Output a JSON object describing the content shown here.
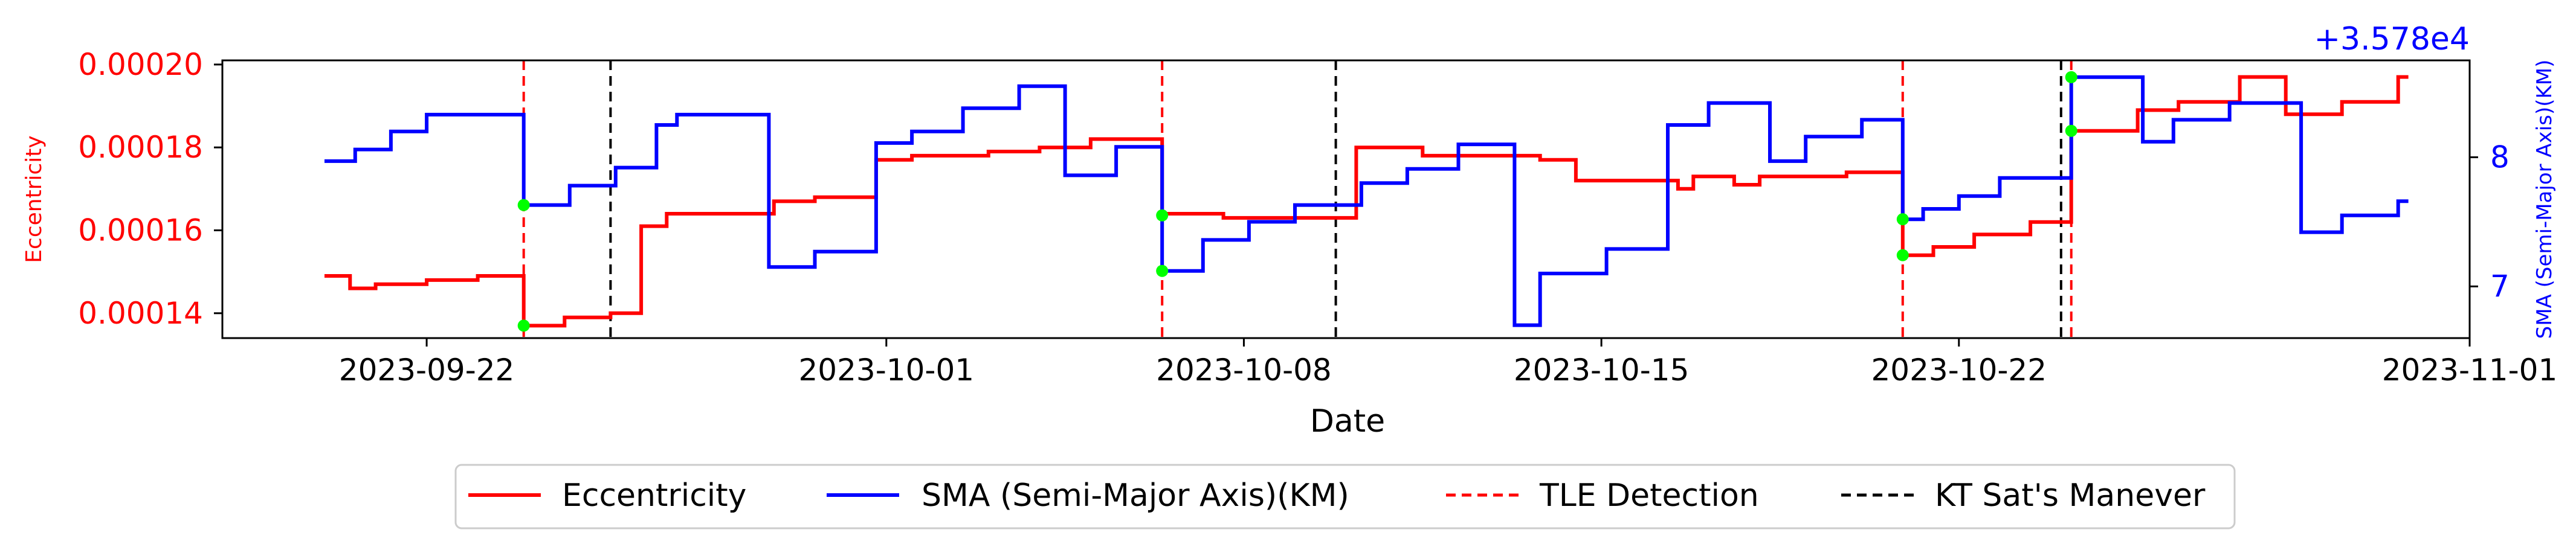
{
  "chart_data": {
    "type": "line",
    "xlabel": "Date",
    "ylabel_left": "Eccentricity",
    "ylabel_right": "SMA (Semi-Major Axis)(KM)",
    "right_offset_text": "+3.578e4",
    "x_ticks": [
      "2023-09-22",
      "2023-10-01",
      "2023-10-08",
      "2023-10-15",
      "2023-10-22",
      "2023-11-01"
    ],
    "y_left_ticks": [
      "0.00014",
      "0.00016",
      "0.00018",
      "0.00020"
    ],
    "y_right_ticks": [
      "7",
      "8"
    ],
    "xlim": [
      "2023-09-18",
      "2023-11-01"
    ],
    "ylim_left": [
      0.000134,
      0.000201
    ],
    "ylim_right": [
      6.6,
      8.75
    ],
    "colors": {
      "eccentricity": "#ff0000",
      "sma": "#0000ff",
      "tle": "#ff0000",
      "kt": "#000000",
      "marker": "#00ff00"
    },
    "series": [
      {
        "name": "Eccentricity",
        "axis": "left",
        "points": [
          [
            "2023-09-20",
            0.000149
          ],
          [
            "2023-09-20.5",
            0.000149
          ],
          [
            "2023-09-20.5",
            0.000146
          ],
          [
            "2023-09-21",
            0.000146
          ],
          [
            "2023-09-21",
            0.000147
          ],
          [
            "2023-09-22",
            0.000147
          ],
          [
            "2023-09-22",
            0.000148
          ],
          [
            "2023-09-23",
            0.000148
          ],
          [
            "2023-09-23",
            0.000149
          ],
          [
            "2023-09-23.9",
            0.000149
          ],
          [
            "2023-09-23.9",
            0.000137
          ],
          [
            "2023-09-24.7",
            0.000137
          ],
          [
            "2023-09-24.7",
            0.000139
          ],
          [
            "2023-09-25.6",
            0.000139
          ],
          [
            "2023-09-25.6",
            0.00014
          ],
          [
            "2023-09-26.2",
            0.00014
          ],
          [
            "2023-09-26.2",
            0.000161
          ],
          [
            "2023-09-26.7",
            0.000161
          ],
          [
            "2023-09-26.7",
            0.000164
          ],
          [
            "2023-09-28.8",
            0.000164
          ],
          [
            "2023-09-28.8",
            0.000167
          ],
          [
            "2023-09-29.6",
            0.000167
          ],
          [
            "2023-09-29.6",
            0.000168
          ],
          [
            "2023-09-30.8",
            0.000168
          ],
          [
            "2023-09-30.8",
            0.000177
          ],
          [
            "2023-10-01.5",
            0.000177
          ],
          [
            "2023-10-01.5",
            0.000178
          ],
          [
            "2023-10-03",
            0.000178
          ],
          [
            "2023-10-03",
            0.000179
          ],
          [
            "2023-10-04",
            0.000179
          ],
          [
            "2023-10-04",
            0.00018
          ],
          [
            "2023-10-05",
            0.00018
          ],
          [
            "2023-10-05",
            0.000182
          ],
          [
            "2023-10-06.4",
            0.000182
          ],
          [
            "2023-10-06.4",
            0.000164
          ],
          [
            "2023-10-07.6",
            0.000164
          ],
          [
            "2023-10-07.6",
            0.000163
          ],
          [
            "2023-10-09.5",
            0.000163
          ],
          [
            "2023-10-09.5",
            0.000163
          ],
          [
            "2023-10-10.2",
            0.000163
          ],
          [
            "2023-10-10.2",
            0.00018
          ],
          [
            "2023-10-11.5",
            0.00018
          ],
          [
            "2023-10-11.5",
            0.000178
          ],
          [
            "2023-10-13.8",
            0.000178
          ],
          [
            "2023-10-13.8",
            0.000177
          ],
          [
            "2023-10-14.5",
            0.000177
          ],
          [
            "2023-10-14.5",
            0.000172
          ],
          [
            "2023-10-16.5",
            0.000172
          ],
          [
            "2023-10-16.5",
            0.00017
          ],
          [
            "2023-10-16.8",
            0.00017
          ],
          [
            "2023-10-16.8",
            0.000173
          ],
          [
            "2023-10-17.6",
            0.000173
          ],
          [
            "2023-10-17.6",
            0.000171
          ],
          [
            "2023-10-18.1",
            0.000171
          ],
          [
            "2023-10-18.1",
            0.000173
          ],
          [
            "2023-10-19.8",
            0.000173
          ],
          [
            "2023-10-19.8",
            0.000174
          ],
          [
            "2023-10-20.9",
            0.000174
          ],
          [
            "2023-10-20.9",
            0.000154
          ],
          [
            "2023-10-21.5",
            0.000154
          ],
          [
            "2023-10-21.5",
            0.000156
          ],
          [
            "2023-10-22.3",
            0.000156
          ],
          [
            "2023-10-22.3",
            0.000159
          ],
          [
            "2023-10-23.4",
            0.000159
          ],
          [
            "2023-10-23.4",
            0.000162
          ],
          [
            "2023-10-24.2",
            0.000162
          ],
          [
            "2023-10-24.2",
            0.000184
          ],
          [
            "2023-10-25.5",
            0.000184
          ],
          [
            "2023-10-25.5",
            0.000189
          ],
          [
            "2023-10-26.3",
            0.000189
          ],
          [
            "2023-10-26.3",
            0.000191
          ],
          [
            "2023-10-27.5",
            0.000191
          ],
          [
            "2023-10-27.5",
            0.000197
          ],
          [
            "2023-10-28.4",
            0.000197
          ],
          [
            "2023-10-28.4",
            0.000188
          ],
          [
            "2023-10-29.5",
            0.000188
          ],
          [
            "2023-10-29.5",
            0.000191
          ],
          [
            "2023-10-30.6",
            0.000191
          ],
          [
            "2023-10-30.6",
            0.000197
          ],
          [
            "2023-10-30.8",
            0.000197
          ]
        ]
      },
      {
        "name": "SMA (Semi-Major Axis)(KM)",
        "axis": "right",
        "points": [
          [
            "2023-09-20",
            7.97
          ],
          [
            "2023-09-20.6",
            7.97
          ],
          [
            "2023-09-20.6",
            8.06
          ],
          [
            "2023-09-21.3",
            8.06
          ],
          [
            "2023-09-21.3",
            8.2
          ],
          [
            "2023-09-22",
            8.2
          ],
          [
            "2023-09-22",
            8.33
          ],
          [
            "2023-09-23.9",
            8.33
          ],
          [
            "2023-09-23.9",
            7.63
          ],
          [
            "2023-09-24.8",
            7.63
          ],
          [
            "2023-09-24.8",
            7.78
          ],
          [
            "2023-09-25.7",
            7.78
          ],
          [
            "2023-09-25.7",
            7.92
          ],
          [
            "2023-09-26.5",
            7.92
          ],
          [
            "2023-09-26.5",
            8.25
          ],
          [
            "2023-09-26.9",
            8.25
          ],
          [
            "2023-09-26.9",
            8.33
          ],
          [
            "2023-09-28.7",
            8.33
          ],
          [
            "2023-09-28.7",
            7.15
          ],
          [
            "2023-09-29.6",
            7.15
          ],
          [
            "2023-09-29.6",
            7.27
          ],
          [
            "2023-09-30.8",
            7.27
          ],
          [
            "2023-09-30.8",
            8.11
          ],
          [
            "2023-10-01.5",
            8.11
          ],
          [
            "2023-10-01.5",
            8.2
          ],
          [
            "2023-10-02.5",
            8.2
          ],
          [
            "2023-10-02.5",
            8.38
          ],
          [
            "2023-10-03.6",
            8.38
          ],
          [
            "2023-10-03.6",
            8.55
          ],
          [
            "2023-10-04.5",
            8.55
          ],
          [
            "2023-10-04.5",
            7.86
          ],
          [
            "2023-10-05.5",
            7.86
          ],
          [
            "2023-10-05.5",
            8.08
          ],
          [
            "2023-10-06.4",
            8.08
          ],
          [
            "2023-10-06.4",
            7.12
          ],
          [
            "2023-10-07.2",
            7.12
          ],
          [
            "2023-10-07.2",
            7.36
          ],
          [
            "2023-10-08.1",
            7.36
          ],
          [
            "2023-10-08.1",
            7.5
          ],
          [
            "2023-10-09",
            7.5
          ],
          [
            "2023-10-09",
            7.63
          ],
          [
            "2023-10-10.3",
            7.63
          ],
          [
            "2023-10-10.3",
            7.8
          ],
          [
            "2023-10-11.2",
            7.8
          ],
          [
            "2023-10-11.2",
            7.91
          ],
          [
            "2023-10-12.2",
            7.91
          ],
          [
            "2023-10-12.2",
            8.1
          ],
          [
            "2023-10-13.3",
            8.1
          ],
          [
            "2023-10-13.3",
            6.7
          ],
          [
            "2023-10-13.8",
            6.7
          ],
          [
            "2023-10-13.8",
            7.1
          ],
          [
            "2023-10-15.1",
            7.1
          ],
          [
            "2023-10-15.1",
            7.29
          ],
          [
            "2023-10-16.3",
            7.29
          ],
          [
            "2023-10-16.3",
            8.25
          ],
          [
            "2023-10-17.1",
            8.25
          ],
          [
            "2023-10-17.1",
            8.42
          ],
          [
            "2023-10-18.3",
            8.42
          ],
          [
            "2023-10-18.3",
            7.97
          ],
          [
            "2023-10-19",
            7.97
          ],
          [
            "2023-10-19",
            8.16
          ],
          [
            "2023-10-20.1",
            8.16
          ],
          [
            "2023-10-20.1",
            8.29
          ],
          [
            "2023-10-20.9",
            8.29
          ],
          [
            "2023-10-20.9",
            7.52
          ],
          [
            "2023-10-21.3",
            7.52
          ],
          [
            "2023-10-21.3",
            7.6
          ],
          [
            "2023-10-22",
            7.6
          ],
          [
            "2023-10-22",
            7.7
          ],
          [
            "2023-10-22.8",
            7.7
          ],
          [
            "2023-10-22.8",
            7.84
          ],
          [
            "2023-10-24.2",
            7.84
          ],
          [
            "2023-10-24.2",
            8.62
          ],
          [
            "2023-10-25.6",
            8.62
          ],
          [
            "2023-10-25.6",
            8.12
          ],
          [
            "2023-10-26.2",
            8.12
          ],
          [
            "2023-10-26.2",
            8.29
          ],
          [
            "2023-10-27.3",
            8.29
          ],
          [
            "2023-10-27.3",
            8.42
          ],
          [
            "2023-10-28.7",
            8.42
          ],
          [
            "2023-10-28.7",
            7.42
          ],
          [
            "2023-10-29.5",
            7.42
          ],
          [
            "2023-10-29.5",
            7.55
          ],
          [
            "2023-10-30.6",
            7.55
          ],
          [
            "2023-10-30.6",
            7.66
          ],
          [
            "2023-10-30.8",
            7.66
          ]
        ]
      }
    ],
    "tle_detections": [
      "2023-09-23.9",
      "2023-10-06.4",
      "2023-10-20.9",
      "2023-10-24.2"
    ],
    "kt_maneuvers": [
      "2023-09-25.6",
      "2023-10-09.8",
      "2023-10-24.0"
    ],
    "markers": [
      {
        "x": "2023-09-23.9",
        "axis": "right",
        "y": 7.63
      },
      {
        "x": "2023-09-23.9",
        "axis": "left",
        "y": 0.000137
      },
      {
        "x": "2023-10-06.4",
        "axis": "right",
        "y": 7.55
      },
      {
        "x": "2023-10-06.4",
        "axis": "right",
        "y": 7.12
      },
      {
        "x": "2023-10-20.9",
        "axis": "right",
        "y": 7.52
      },
      {
        "x": "2023-10-20.9",
        "axis": "left",
        "y": 0.000154
      },
      {
        "x": "2023-10-24.2",
        "axis": "right",
        "y": 8.62
      },
      {
        "x": "2023-10-24.2",
        "axis": "left",
        "y": 0.000184
      }
    ],
    "legend": {
      "position": "bottom-center",
      "entries": [
        {
          "label": "Eccentricity",
          "style": "solid",
          "color": "#ff0000"
        },
        {
          "label": "SMA (Semi-Major Axis)(KM)",
          "style": "solid",
          "color": "#0000ff"
        },
        {
          "label": "TLE Detection",
          "style": "dashed",
          "color": "#ff0000"
        },
        {
          "label": "KT Sat's Manever",
          "style": "dashed",
          "color": "#000000"
        }
      ]
    }
  }
}
